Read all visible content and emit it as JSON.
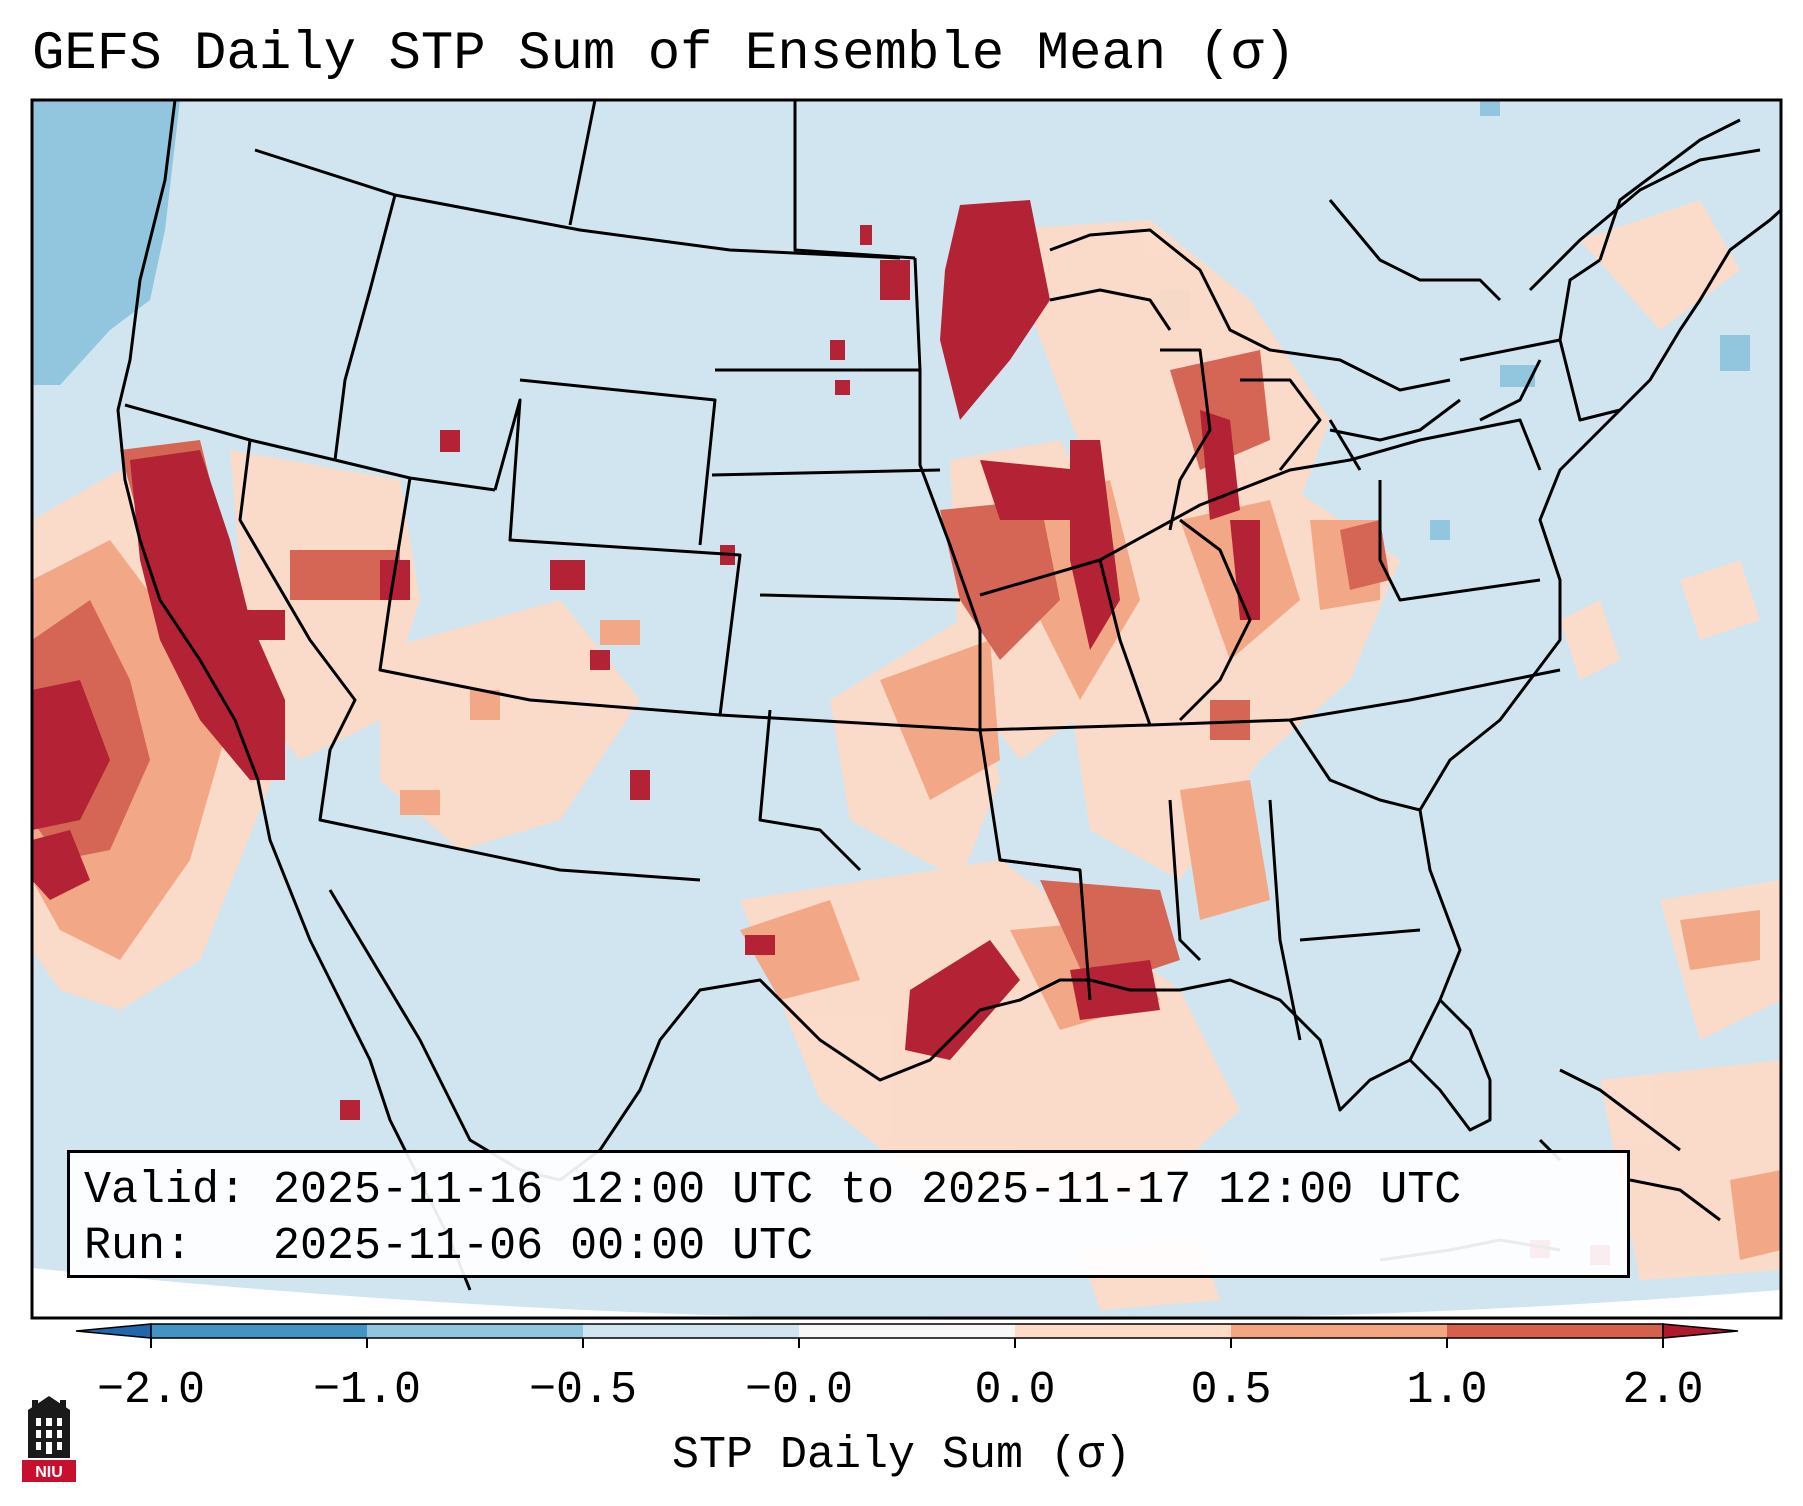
{
  "title": "GEFS Daily STP Sum of Ensemble Mean (σ)",
  "info_box": {
    "valid_label": "Valid:",
    "valid_value": "2025-11-16 12:00 UTC to 2025-11-17 12:00 UTC",
    "run_label": "Run:",
    "run_value": "2025-11-06 00:00 UTC"
  },
  "colorbar": {
    "label": "STP Daily Sum (σ)",
    "ticks": [
      "−2.0",
      "−1.0",
      "−0.5",
      "−0.0",
      "0.0",
      "0.5",
      "1.0",
      "2.0"
    ],
    "bins": [
      {
        "from": -2.0,
        "to": -1.0,
        "color": "#4393c3"
      },
      {
        "from": -1.0,
        "to": -0.5,
        "color": "#92c5de"
      },
      {
        "from": -0.5,
        "to": -0.0,
        "color": "#d1e5f0"
      },
      {
        "from": -0.0,
        "to": 0.0,
        "color": "#f7f7f7"
      },
      {
        "from": 0.0,
        "to": 0.5,
        "color": "#fddbc7"
      },
      {
        "from": 0.5,
        "to": 1.0,
        "color": "#f4a582"
      },
      {
        "from": 1.0,
        "to": 2.0,
        "color": "#d6604d"
      }
    ],
    "under_color": "#2166ac",
    "over_color": "#b2182b"
  },
  "colors": {
    "background_field": "#d1e5f0",
    "strong_positive": "#b2182b",
    "moderate_positive": "#d6604d",
    "weak_positive": "#f4a582",
    "slight_positive": "#fddbc7",
    "slight_negative": "#92c5de"
  },
  "logo": {
    "text": "NIU",
    "icon": "university-building-icon"
  }
}
